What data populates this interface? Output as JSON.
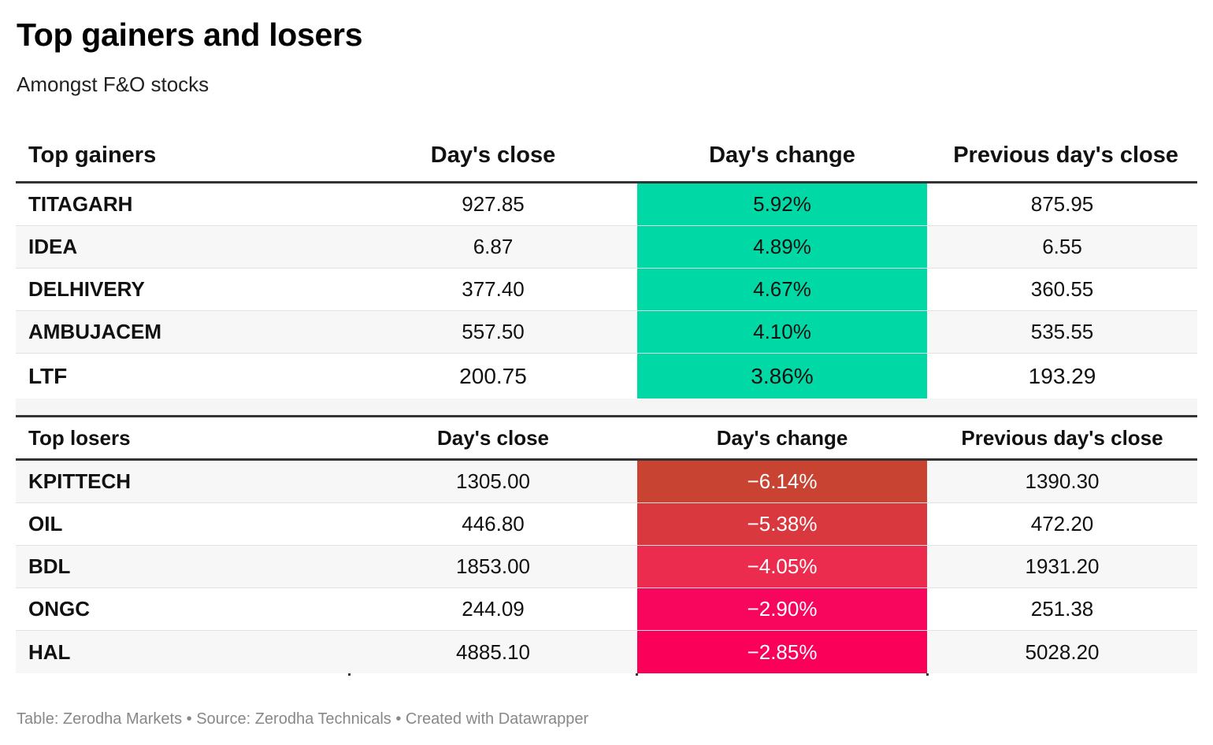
{
  "title": "Top gainers and losers",
  "subtitle": "Amongst F&O stocks",
  "footer": "Table: Zerodha Markets • Source: Zerodha Technicals • Created with Datawrapper",
  "colors": {
    "gain_fill": "#00d9a6",
    "loss_fills": [
      "#c94332",
      "#d9383e",
      "#ec2c4f",
      "#f8055d",
      "#fa0058"
    ]
  },
  "chart_data": {
    "type": "table",
    "title": "Top gainers and losers",
    "subtitle": "Amongst F&O stocks",
    "gainers": {
      "columns": [
        "Top gainers",
        "Day's close",
        "Day's change",
        "Previous day's close"
      ],
      "rows": [
        {
          "stock": "TITAGARH",
          "close": "927.85",
          "change": "5.92%",
          "prev_close": "875.95"
        },
        {
          "stock": "IDEA",
          "close": "6.87",
          "change": "4.89%",
          "prev_close": "6.55"
        },
        {
          "stock": "DELHIVERY",
          "close": "377.40",
          "change": "4.67%",
          "prev_close": "360.55"
        },
        {
          "stock": "AMBUJACEM",
          "close": "557.50",
          "change": "4.10%",
          "prev_close": "535.55"
        },
        {
          "stock": "LTF",
          "close": "200.75",
          "change": "3.86%",
          "prev_close": "193.29"
        }
      ]
    },
    "losers": {
      "columns": [
        "Top losers",
        "Day's close",
        "Day's change",
        "Previous day's close"
      ],
      "rows": [
        {
          "stock": "KPITTECH",
          "close": "1305.00",
          "change": "−6.14%",
          "prev_close": "1390.30"
        },
        {
          "stock": "OIL",
          "close": "446.80",
          "change": "−5.38%",
          "prev_close": "472.20"
        },
        {
          "stock": "BDL",
          "close": "1853.00",
          "change": "−4.05%",
          "prev_close": "1931.20"
        },
        {
          "stock": "ONGC",
          "close": "244.09",
          "change": "−2.90%",
          "prev_close": "251.38"
        },
        {
          "stock": "HAL",
          "close": "4885.10",
          "change": "−2.85%",
          "prev_close": "5028.20"
        }
      ]
    }
  }
}
